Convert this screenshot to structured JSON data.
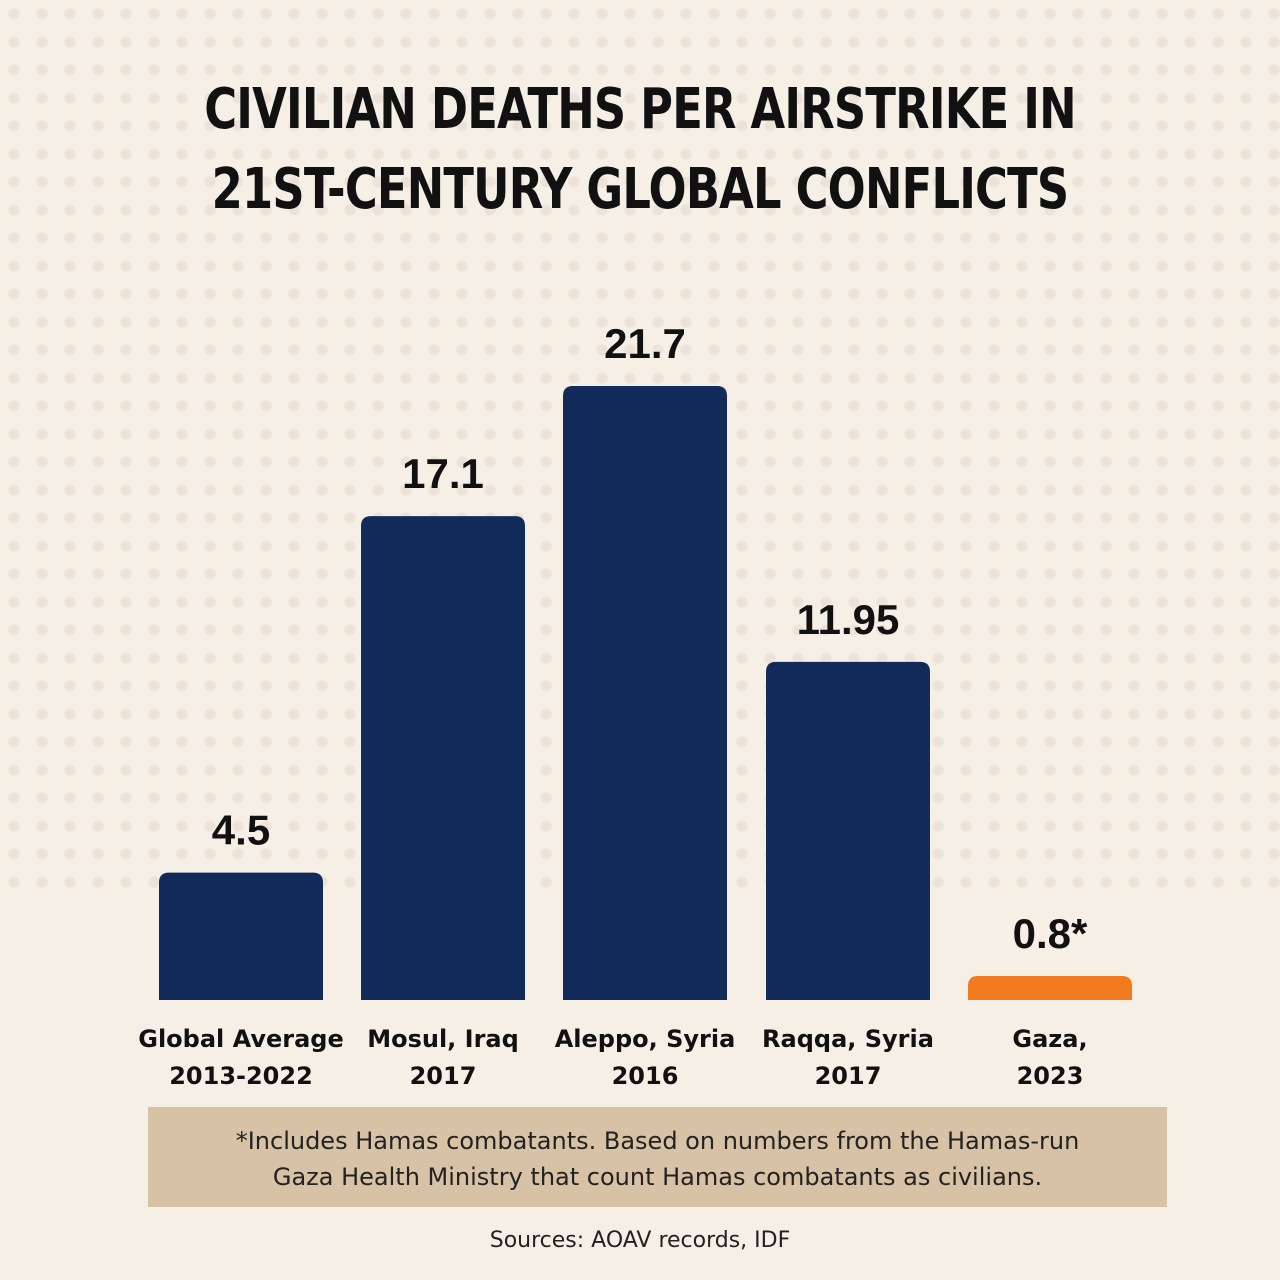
{
  "chart_data": {
    "type": "bar",
    "title_lines": [
      "CIVILIAN DEATHS PER AIRSTRIKE IN",
      "21ST-CENTURY GLOBAL CONFLICTS"
    ],
    "categories": [
      {
        "line1": "Global Average",
        "line2": "2013-2022"
      },
      {
        "line1": "Mosul, Iraq",
        "line2": "2017"
      },
      {
        "line1": "Aleppo, Syria",
        "line2": "2016"
      },
      {
        "line1": "Raqqa, Syria",
        "line2": "2017"
      },
      {
        "line1": "Gaza,",
        "line2": "2023"
      }
    ],
    "values": [
      4.5,
      17.1,
      21.7,
      11.95,
      0.8
    ],
    "value_labels": [
      "4.5",
      "17.1",
      "21.7",
      "11.95",
      "0.8*"
    ],
    "bar_colors": [
      "#132b5a",
      "#132b5a",
      "#132b5a",
      "#132b5a",
      "#f47a1f"
    ],
    "ylim": [
      0,
      21.7
    ],
    "grid": false,
    "xlabel": "",
    "ylabel": ""
  },
  "footnote_lines": [
    "*Includes Hamas combatants. Based on numbers from the Hamas-run",
    "Gaza Health Ministry that count Hamas combatants as civilians."
  ],
  "sources": "Sources: AOAV records, IDF"
}
